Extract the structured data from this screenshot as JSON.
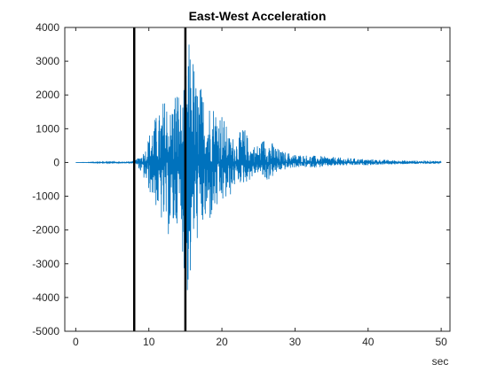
{
  "chart_data": {
    "type": "line",
    "title": "East-West Acceleration",
    "xlabel": "sec",
    "ylabel": "",
    "xlim": [
      -1.5,
      51.2
    ],
    "ylim": [
      -5000,
      4000
    ],
    "xticks": [
      0,
      10,
      20,
      30,
      40,
      50
    ],
    "yticks": [
      4000,
      3000,
      2000,
      1000,
      0,
      -1000,
      -2000,
      -3000,
      -4000,
      -5000
    ],
    "grid": false,
    "vertical_markers": [
      8,
      15
    ],
    "series": [
      {
        "color": "#0072BD",
        "x": [
          0,
          7.5,
          8.5,
          9.5,
          10.5,
          11.0,
          11.5,
          12.0,
          12.5,
          13.0,
          13.5,
          14.0,
          14.5,
          15.0,
          15.5,
          16.0,
          16.5,
          17.0,
          18.0,
          19.0,
          20.0,
          21.0,
          22.0,
          23.0,
          24.0,
          25.0,
          26.0,
          28.0,
          30.0,
          33.0,
          36.0,
          40.0,
          45.0,
          50.0
        ],
        "y_max": [
          0,
          30,
          120,
          400,
          1250,
          1400,
          1500,
          1900,
          2000,
          1600,
          2300,
          2350,
          1700,
          2500,
          3600,
          3400,
          2400,
          2350,
          1900,
          1800,
          1550,
          800,
          750,
          1100,
          500,
          550,
          800,
          350,
          250,
          200,
          150,
          100,
          60,
          50
        ],
        "y_min": [
          0,
          -30,
          -120,
          -600,
          -1100,
          -1350,
          -1700,
          -2000,
          -2150,
          -2300,
          -2150,
          -1700,
          -2300,
          -3850,
          -4250,
          -2600,
          -2450,
          -2100,
          -1950,
          -1600,
          -1300,
          -1100,
          -600,
          -650,
          -500,
          -300,
          -600,
          -250,
          -150,
          -150,
          -100,
          -80,
          -50,
          -40
        ]
      }
    ]
  }
}
